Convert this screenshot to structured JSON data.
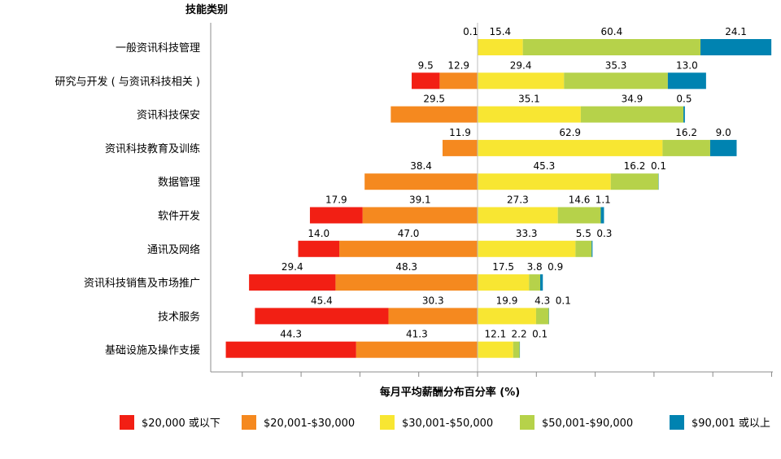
{
  "chart_data": {
    "type": "bar",
    "orientation": "horizontal",
    "stacking": "diverging",
    "y_axis_title": "技能类别",
    "x_axis_title": "每月平均薪酬分布百分率 (%)",
    "categories": [
      "一般资讯科技管理",
      "研究与开发 ( 与资讯科技相关 )",
      "资讯科技保安",
      "资讯科技教育及训练",
      "数据管理",
      "软件开发",
      "通讯及网络",
      "资讯科技销售及市场推广",
      "技术服务",
      "基础设施及操作支援"
    ],
    "series": [
      {
        "name": "$20,000 或以下",
        "color": "#f21f14",
        "side": "left",
        "values": [
          0,
          9.5,
          0,
          0,
          0,
          17.9,
          14.0,
          29.4,
          45.4,
          44.3
        ],
        "labels": [
          "",
          "9.5",
          "",
          "",
          "",
          "17.9",
          "14.0",
          "29.4",
          "45.4",
          "44.3"
        ]
      },
      {
        "name": "$20,001-$30,000",
        "color": "#f5891f",
        "side": "left",
        "values": [
          0.1,
          12.9,
          29.5,
          11.9,
          38.4,
          39.1,
          47.0,
          48.3,
          30.3,
          41.3
        ],
        "labels": [
          "0.1",
          "12.9",
          "29.5",
          "11.9",
          "38.4",
          "39.1",
          "47.0",
          "48.3",
          "30.3",
          "41.3"
        ]
      },
      {
        "name": "$30,001-$50,000",
        "color": "#f8e632",
        "side": "right",
        "values": [
          15.4,
          29.4,
          35.1,
          62.9,
          45.3,
          27.3,
          33.3,
          17.5,
          19.9,
          12.1
        ],
        "labels": [
          "15.4",
          "29.4",
          "35.1",
          "62.9",
          "45.3",
          "27.3",
          "33.3",
          "17.5",
          "19.9",
          "12.1"
        ]
      },
      {
        "name": "$50,001-$90,000",
        "color": "#b6d24a",
        "side": "right",
        "values": [
          60.4,
          35.3,
          34.9,
          16.2,
          16.2,
          14.6,
          5.5,
          3.8,
          4.3,
          2.2
        ],
        "labels": [
          "60.4",
          "35.3",
          "34.9",
          "16.2",
          "16.2",
          "14.6",
          "5.5",
          "3.8",
          "4.3",
          "2.2"
        ]
      },
      {
        "name": "$90,001 或以上",
        "color": "#0083b1",
        "side": "right",
        "values": [
          24.1,
          13.0,
          0.5,
          9.0,
          0.1,
          1.1,
          0.3,
          0.9,
          0.1,
          0.1
        ],
        "labels": [
          "24.1",
          "13.0",
          "0.5",
          "9.0",
          "0.1",
          "1.1",
          "0.3",
          "0.9",
          "0.1",
          "0.1"
        ]
      }
    ],
    "xlim": [
      -90,
      100
    ],
    "grid": false,
    "legend_position": "bottom"
  }
}
